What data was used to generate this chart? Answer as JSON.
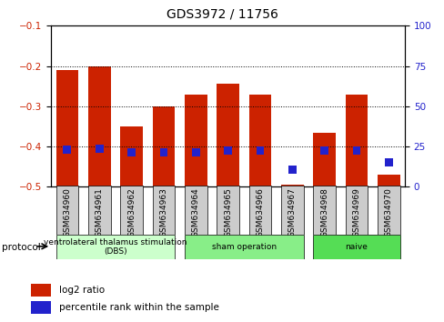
{
  "title": "GDS3972 / 11756",
  "samples": [
    "GSM634960",
    "GSM634961",
    "GSM634962",
    "GSM634963",
    "GSM634964",
    "GSM634965",
    "GSM634966",
    "GSM634967",
    "GSM634968",
    "GSM634969",
    "GSM634970"
  ],
  "log2_ratio": [
    -0.21,
    -0.2,
    -0.35,
    -0.3,
    -0.27,
    -0.245,
    -0.27,
    -0.495,
    -0.365,
    -0.27,
    -0.47
  ],
  "percentile_rank_mapped": [
    -0.418,
    -0.415,
    -0.425,
    -0.425,
    -0.425,
    -0.42,
    -0.42,
    -0.468,
    -0.42,
    -0.42,
    -0.45
  ],
  "bar_bottom": -0.5,
  "ylim_left": [
    -0.5,
    -0.1
  ],
  "ylim_right": [
    0,
    100
  ],
  "yticks_left": [
    -0.5,
    -0.4,
    -0.3,
    -0.2,
    -0.1
  ],
  "yticks_right": [
    0,
    25,
    50,
    75,
    100
  ],
  "bar_color_red": "#cc2200",
  "bar_color_blue": "#2222cc",
  "bar_width": 0.7,
  "blue_bar_width": 0.25,
  "blue_bar_height": 0.02,
  "protocols": [
    {
      "label": "ventrolateral thalamus stimulation\n(DBS)",
      "start": 0,
      "end": 3,
      "color": "#ccffcc"
    },
    {
      "label": "sham operation",
      "start": 4,
      "end": 7,
      "color": "#88ee88"
    },
    {
      "label": "naive",
      "start": 8,
      "end": 10,
      "color": "#55dd55"
    }
  ],
  "protocol_label": "protocol",
  "legend_red": "log2 ratio",
  "legend_blue": "percentile rank within the sample",
  "tick_label_color_left": "#cc2200",
  "tick_label_color_right": "#2222cc",
  "plot_bg": "#ffffff",
  "gray_box_color": "#cccccc"
}
